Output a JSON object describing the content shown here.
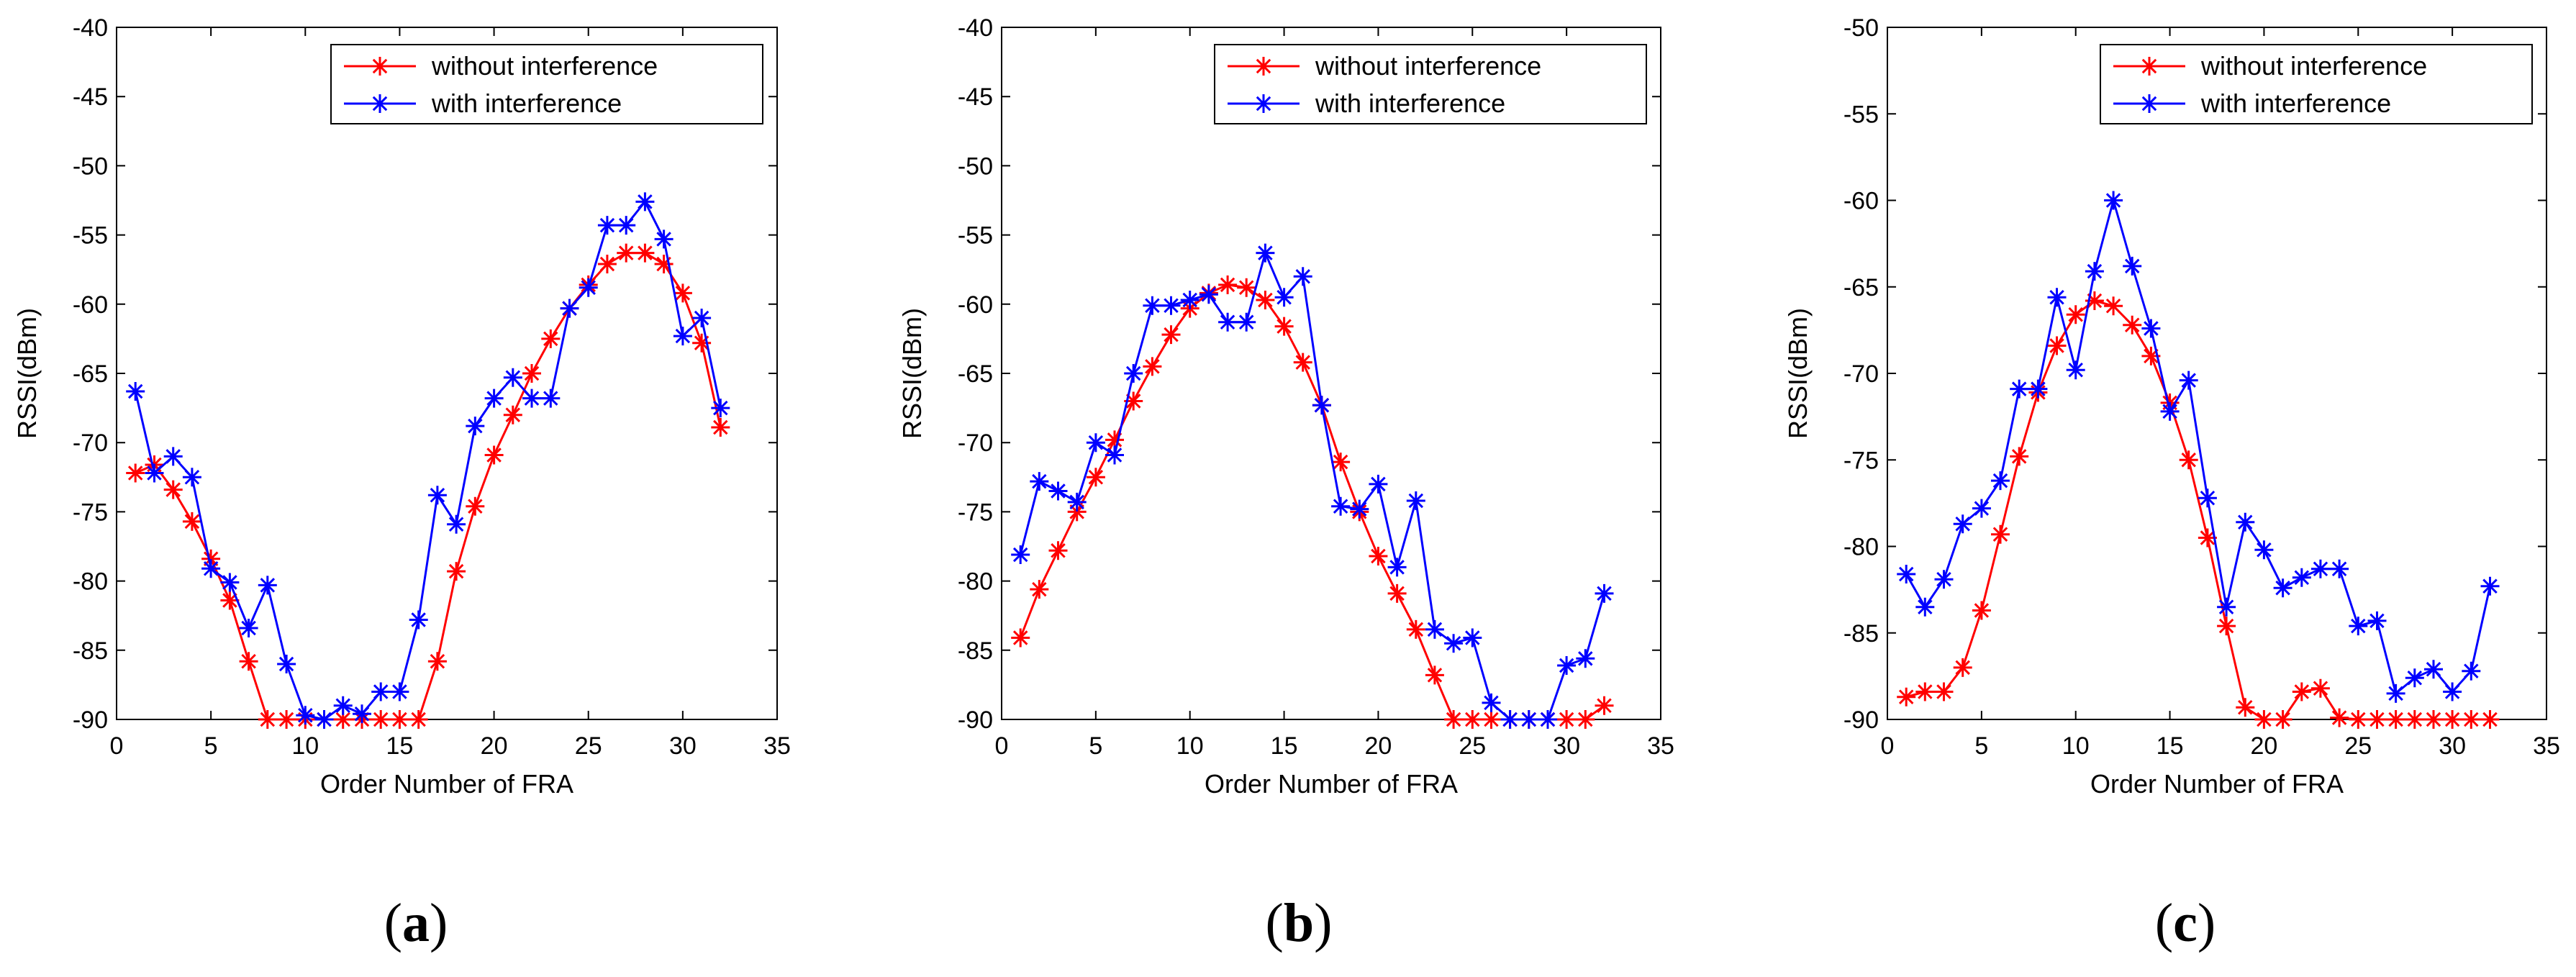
{
  "chart_data": [
    {
      "type": "line",
      "panel_label": "a",
      "xlabel": "Order Number of FRA",
      "ylabel": "RSSI(dBm)",
      "xlim": [
        0,
        35
      ],
      "ylim": [
        -90,
        -40
      ],
      "xticks": [
        0,
        5,
        10,
        15,
        20,
        25,
        30,
        35
      ],
      "yticks": [
        -90,
        -85,
        -80,
        -75,
        -70,
        -65,
        -60,
        -55,
        -50,
        -45,
        -40
      ],
      "legend_position": "top-right",
      "series": [
        {
          "name": "without interference",
          "color": "#ff0000",
          "x": [
            1,
            2,
            3,
            4,
            5,
            6,
            7,
            8,
            9,
            10,
            11,
            12,
            13,
            14,
            15,
            16,
            17,
            18,
            19,
            20,
            21,
            22,
            23,
            24,
            25,
            26,
            27,
            28,
            29,
            30,
            31,
            32
          ],
          "values": [
            -72.2,
            -71.6,
            -73.4,
            -75.7,
            -78.4,
            -81.4,
            -85.8,
            -90,
            -90,
            -90,
            -90,
            -90,
            -90,
            -90,
            -90,
            -90,
            -85.8,
            -79.3,
            -74.6,
            -70.9,
            -68,
            -65,
            -62.5,
            -60.3,
            -58.6,
            -57.1,
            -56.3,
            -56.3,
            -57.1,
            -59.2,
            -62.8,
            -68.9
          ]
        },
        {
          "name": "with interference",
          "color": "#0000ff",
          "x": [
            1,
            2,
            3,
            4,
            5,
            6,
            7,
            8,
            9,
            10,
            11,
            12,
            13,
            14,
            15,
            16,
            17,
            18,
            19,
            20,
            21,
            22,
            23,
            24,
            25,
            26,
            27,
            28,
            29,
            30,
            31,
            32
          ],
          "values": [
            -66.3,
            -72.2,
            -71,
            -72.5,
            -79.1,
            -80.1,
            -83.4,
            -80.3,
            -86,
            -89.7,
            -90,
            -89,
            -89.6,
            -88,
            -88,
            -82.8,
            -73.8,
            -75.9,
            -68.8,
            -66.8,
            -65.3,
            -66.8,
            -66.8,
            -60.3,
            -58.8,
            -54.3,
            -54.3,
            -52.6,
            -55.3,
            -62.3,
            -61,
            -67.5
          ]
        }
      ]
    },
    {
      "type": "line",
      "panel_label": "b",
      "xlabel": "Order Number of FRA",
      "ylabel": "RSSI(dBm)",
      "xlim": [
        0,
        35
      ],
      "ylim": [
        -90,
        -40
      ],
      "xticks": [
        0,
        5,
        10,
        15,
        20,
        25,
        30,
        35
      ],
      "yticks": [
        -90,
        -85,
        -80,
        -75,
        -70,
        -65,
        -60,
        -55,
        -50,
        -45,
        -40
      ],
      "legend_position": "top-right",
      "series": [
        {
          "name": "without interference",
          "color": "#ff0000",
          "x": [
            1,
            2,
            3,
            4,
            5,
            6,
            7,
            8,
            9,
            10,
            11,
            12,
            13,
            14,
            15,
            16,
            17,
            18,
            19,
            20,
            21,
            22,
            23,
            24,
            25,
            26,
            27,
            28,
            29,
            30,
            31,
            32
          ],
          "values": [
            -84.1,
            -80.6,
            -77.8,
            -75,
            -72.5,
            -69.8,
            -67,
            -64.5,
            -62.2,
            -60.3,
            -59.2,
            -58.6,
            -58.8,
            -59.7,
            -61.6,
            -64.2,
            -67.3,
            -71.4,
            -75,
            -78.2,
            -80.9,
            -83.5,
            -86.8,
            -90,
            -90,
            -90,
            -90,
            -90,
            -90,
            -90,
            -90,
            -89
          ]
        },
        {
          "name": "with interference",
          "color": "#0000ff",
          "x": [
            1,
            2,
            3,
            4,
            5,
            6,
            7,
            8,
            9,
            10,
            11,
            12,
            13,
            14,
            15,
            16,
            17,
            18,
            19,
            20,
            21,
            22,
            23,
            24,
            25,
            26,
            27,
            28,
            29,
            30,
            31,
            32
          ],
          "values": [
            -78.1,
            -72.8,
            -73.5,
            -74.3,
            -70,
            -70.9,
            -65,
            -60.1,
            -60.1,
            -59.7,
            -59.3,
            -61.3,
            -61.3,
            -56.3,
            -59.5,
            -58,
            -67.3,
            -74.6,
            -74.8,
            -73,
            -79,
            -74.2,
            -83.5,
            -84.5,
            -84.1,
            -88.8,
            -90,
            -90,
            -90,
            -86.1,
            -85.6,
            -80.9
          ]
        }
      ]
    },
    {
      "type": "line",
      "panel_label": "c",
      "xlabel": "Order Number of FRA",
      "ylabel": "RSSI(dBm)",
      "xlim": [
        0,
        35
      ],
      "ylim": [
        -90,
        -50
      ],
      "xticks": [
        0,
        5,
        10,
        15,
        20,
        25,
        30,
        35
      ],
      "yticks": [
        -90,
        -85,
        -80,
        -75,
        -70,
        -65,
        -60,
        -55,
        -50
      ],
      "legend_position": "top-right",
      "series": [
        {
          "name": "without interference",
          "color": "#ff0000",
          "x": [
            1,
            2,
            3,
            4,
            5,
            6,
            7,
            8,
            9,
            10,
            11,
            12,
            13,
            14,
            15,
            16,
            17,
            18,
            19,
            20,
            21,
            22,
            23,
            24,
            25,
            26,
            27,
            28,
            29,
            30,
            31,
            32
          ],
          "values": [
            -88.7,
            -88.4,
            -88.4,
            -87,
            -83.7,
            -79.3,
            -74.8,
            -71.1,
            -68.4,
            -66.6,
            -65.8,
            -66.1,
            -67.2,
            -69,
            -71.7,
            -75,
            -79.5,
            -84.6,
            -89.3,
            -90,
            -90,
            -88.4,
            -88.2,
            -89.9,
            -90,
            -90,
            -90,
            -90,
            -90,
            -90,
            -90,
            -90
          ]
        },
        {
          "name": "with interference",
          "color": "#0000ff",
          "x": [
            1,
            2,
            3,
            4,
            5,
            6,
            7,
            8,
            9,
            10,
            11,
            12,
            13,
            14,
            15,
            16,
            17,
            18,
            19,
            20,
            21,
            22,
            23,
            24,
            25,
            26,
            27,
            28,
            29,
            30,
            31,
            32
          ],
          "values": [
            -81.6,
            -83.5,
            -81.9,
            -78.7,
            -77.8,
            -76.2,
            -70.9,
            -70.9,
            -65.6,
            -69.8,
            -64.1,
            -60,
            -63.8,
            -67.4,
            -72.2,
            -70.4,
            -77.2,
            -83.5,
            -78.6,
            -80.2,
            -82.4,
            -81.8,
            -81.3,
            -81.3,
            -84.6,
            -84.3,
            -88.5,
            -87.6,
            -87.1,
            -88.4,
            -87.2,
            -82.3
          ]
        }
      ]
    }
  ]
}
